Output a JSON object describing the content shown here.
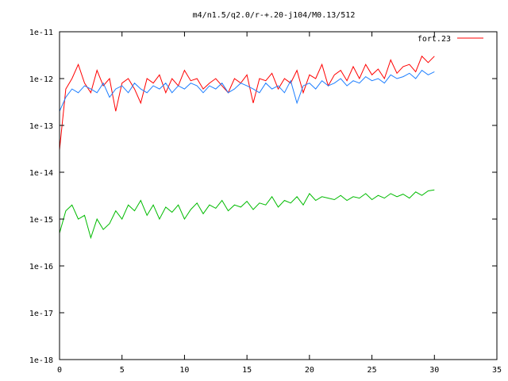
{
  "chart_data": {
    "type": "line",
    "title": "m4/n1.5/q2.0/r-+.20-j104/M0.13/512",
    "xlabel": "",
    "ylabel": "",
    "xlim": [
      0,
      35
    ],
    "ylim": [
      1e-18,
      1e-11
    ],
    "y_scale": "log",
    "x_ticks": [
      {
        "value": 0,
        "label": "0"
      },
      {
        "value": 5,
        "label": "5"
      },
      {
        "value": 10,
        "label": "10"
      },
      {
        "value": 15,
        "label": "15"
      },
      {
        "value": 20,
        "label": "20"
      },
      {
        "value": 25,
        "label": "25"
      },
      {
        "value": 30,
        "label": "30"
      },
      {
        "value": 35,
        "label": "35"
      }
    ],
    "y_ticks": [
      {
        "value": 1e-11,
        "label": "1e-11"
      },
      {
        "value": 1e-12,
        "label": "1e-12"
      },
      {
        "value": 1e-13,
        "label": "1e-13"
      },
      {
        "value": 1e-14,
        "label": "1e-14"
      },
      {
        "value": 1e-15,
        "label": "1e-15"
      },
      {
        "value": 1e-16,
        "label": "1e-16"
      },
      {
        "value": 1e-17,
        "label": "1e-17"
      },
      {
        "value": 1e-18,
        "label": "1e-18"
      }
    ],
    "grid": false,
    "legend_position": "top-right",
    "series": [
      {
        "name": "fort.23",
        "color": "#ff0000",
        "x": [
          0,
          0.5,
          1,
          1.5,
          2,
          2.5,
          3,
          3.5,
          4,
          4.5,
          5,
          5.5,
          6,
          6.5,
          7,
          7.5,
          8,
          8.5,
          9,
          9.5,
          10,
          10.5,
          11,
          11.5,
          12,
          12.5,
          13,
          13.5,
          14,
          14.5,
          15,
          15.5,
          16,
          16.5,
          17,
          17.5,
          18,
          18.5,
          19,
          19.5,
          20,
          20.5,
          21,
          21.5,
          22,
          22.5,
          23,
          23.5,
          24,
          24.5,
          25,
          25.5,
          26,
          26.5,
          27,
          27.5,
          28,
          28.5,
          29,
          29.5,
          30
        ],
        "y": [
          3e-14,
          6e-13,
          1e-12,
          2e-12,
          8e-13,
          5e-13,
          1.5e-12,
          7e-13,
          1e-12,
          2e-13,
          8e-13,
          1e-12,
          6e-13,
          3e-13,
          1e-12,
          8e-13,
          1.2e-12,
          5e-13,
          1e-12,
          7e-13,
          1.5e-12,
          9e-13,
          1e-12,
          6e-13,
          8e-13,
          1e-12,
          7e-13,
          5e-13,
          1e-12,
          8e-13,
          1.2e-12,
          3e-13,
          1e-12,
          9e-13,
          1.3e-12,
          6e-13,
          1e-12,
          8e-13,
          1.5e-12,
          5e-13,
          1.2e-12,
          1e-12,
          2e-12,
          7e-13,
          1.2e-12,
          1.5e-12,
          9e-13,
          1.8e-12,
          1e-12,
          2e-12,
          1.2e-12,
          1.6e-12,
          1e-12,
          2.5e-12,
          1.3e-12,
          1.8e-12,
          2e-12,
          1.4e-12,
          3e-12,
          2.2e-12,
          3e-12
        ]
      },
      {
        "name": "",
        "color": "#1e7fff",
        "x": [
          0,
          0.5,
          1,
          1.5,
          2,
          2.5,
          3,
          3.5,
          4,
          4.5,
          5,
          5.5,
          6,
          6.5,
          7,
          7.5,
          8,
          8.5,
          9,
          9.5,
          10,
          10.5,
          11,
          11.5,
          12,
          12.5,
          13,
          13.5,
          14,
          14.5,
          15,
          15.5,
          16,
          16.5,
          17,
          17.5,
          18,
          18.5,
          19,
          19.5,
          20,
          20.5,
          21,
          21.5,
          22,
          22.5,
          23,
          23.5,
          24,
          24.5,
          25,
          25.5,
          26,
          26.5,
          27,
          27.5,
          28,
          28.5,
          29,
          29.5,
          30
        ],
        "y": [
          2e-13,
          4e-13,
          6e-13,
          5e-13,
          7e-13,
          6e-13,
          5e-13,
          8e-13,
          4e-13,
          6e-13,
          7e-13,
          5e-13,
          8e-13,
          6e-13,
          5e-13,
          7e-13,
          6e-13,
          8e-13,
          5e-13,
          7e-13,
          6e-13,
          8e-13,
          7e-13,
          5e-13,
          7e-13,
          6e-13,
          8e-13,
          5e-13,
          6e-13,
          8e-13,
          7e-13,
          6e-13,
          5e-13,
          8e-13,
          6e-13,
          7e-13,
          5e-13,
          9e-13,
          3e-13,
          7e-13,
          8e-13,
          6e-13,
          9e-13,
          7e-13,
          8e-13,
          1e-12,
          7e-13,
          9e-13,
          8e-13,
          1.1e-12,
          9e-13,
          1e-12,
          8e-13,
          1.2e-12,
          1e-12,
          1.1e-12,
          1.3e-12,
          1e-12,
          1.5e-12,
          1.2e-12,
          1.4e-12
        ]
      },
      {
        "name": "",
        "color": "#00bb00",
        "x": [
          0,
          0.5,
          1,
          1.5,
          2,
          2.5,
          3,
          3.5,
          4,
          4.5,
          5,
          5.5,
          6,
          6.5,
          7,
          7.5,
          8,
          8.5,
          9,
          9.5,
          10,
          10.5,
          11,
          11.5,
          12,
          12.5,
          13,
          13.5,
          14,
          14.5,
          15,
          15.5,
          16,
          16.5,
          17,
          17.5,
          18,
          18.5,
          19,
          19.5,
          20,
          20.5,
          21,
          21.5,
          22,
          22.5,
          23,
          23.5,
          24,
          24.5,
          25,
          25.5,
          26,
          26.5,
          27,
          27.5,
          28,
          28.5,
          29,
          29.5,
          30
        ],
        "y": [
          5e-16,
          1.5e-15,
          2e-15,
          1e-15,
          1.2e-15,
          4e-16,
          1e-15,
          6e-16,
          8e-16,
          1.5e-15,
          1e-15,
          2e-15,
          1.5e-15,
          2.5e-15,
          1.2e-15,
          2e-15,
          1e-15,
          1.8e-15,
          1.4e-15,
          2e-15,
          1e-15,
          1.6e-15,
          2.2e-15,
          1.3e-15,
          2e-15,
          1.7e-15,
          2.5e-15,
          1.5e-15,
          2e-15,
          1.8e-15,
          2.4e-15,
          1.6e-15,
          2.2e-15,
          2e-15,
          3e-15,
          1.8e-15,
          2.5e-15,
          2.2e-15,
          3e-15,
          2e-15,
          3.5e-15,
          2.5e-15,
          3e-15,
          2.8e-15,
          2.6e-15,
          3.2e-15,
          2.5e-15,
          3e-15,
          2.8e-15,
          3.5e-15,
          2.6e-15,
          3.2e-15,
          2.8e-15,
          3.5e-15,
          3e-15,
          3.4e-15,
          2.8e-15,
          3.8e-15,
          3.2e-15,
          4e-15,
          4.2e-15
        ]
      }
    ]
  }
}
